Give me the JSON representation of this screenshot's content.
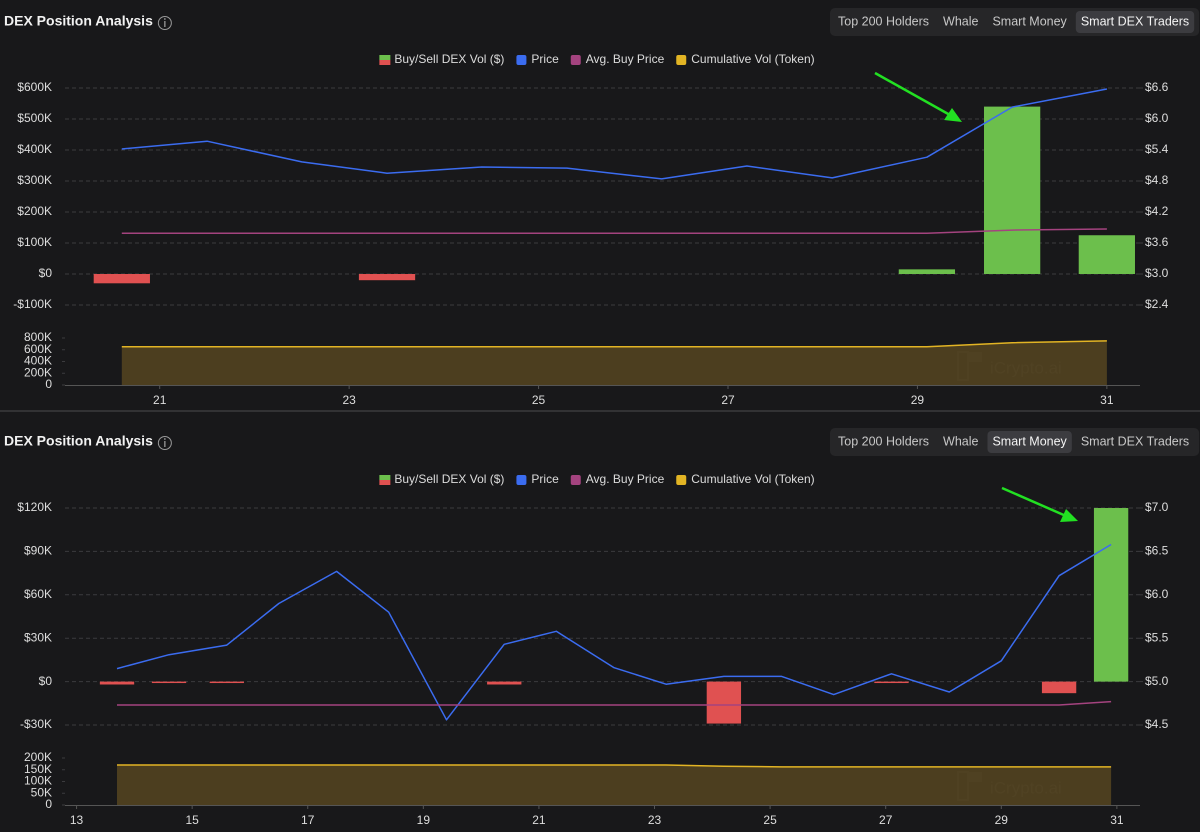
{
  "chart_data": [
    {
      "type": "combo",
      "title": "DEX Position Analysis",
      "tabs": [
        "Top 200 Holders",
        "Whale",
        "Smart Money",
        "Smart DEX Traders"
      ],
      "active_tab": 3,
      "watermark": "iCrypto.ai",
      "x": [
        20.6,
        21.5,
        22.5,
        23.4,
        24.4,
        25.3,
        26.3,
        27.2,
        28.1,
        29.1,
        30.0,
        31.0
      ],
      "xlim": [
        20,
        31.35
      ],
      "xticks": [
        21,
        23,
        25,
        27,
        29,
        31
      ],
      "ylim": [
        -100000,
        600000
      ],
      "yticks": [
        {
          "value": 600000,
          "label": "$600K"
        },
        {
          "value": 500000,
          "label": "$500K"
        },
        {
          "value": 400000,
          "label": "$400K"
        },
        {
          "value": 300000,
          "label": "$300K"
        },
        {
          "value": 200000,
          "label": "$200K"
        },
        {
          "value": 100000,
          "label": "$100K"
        },
        {
          "value": 0,
          "label": "$0"
        },
        {
          "value": -100000,
          "label": "-$100K"
        }
      ],
      "y2lim": [
        2.4,
        6.6
      ],
      "y2ticks": [
        {
          "value": 6.6,
          "label": "$6.6"
        },
        {
          "value": 6.0,
          "label": "$6.0"
        },
        {
          "value": 5.4,
          "label": "$5.4"
        },
        {
          "value": 4.8,
          "label": "$4.8"
        },
        {
          "value": 4.2,
          "label": "$4.2"
        },
        {
          "value": 3.6,
          "label": "$3.6"
        },
        {
          "value": 3.0,
          "label": "$3.0"
        },
        {
          "value": 2.4,
          "label": "$2.4"
        }
      ],
      "y3lim": [
        0,
        800000
      ],
      "y3ticks": [
        {
          "value": 800000,
          "label": "800K"
        },
        {
          "value": 600000,
          "label": "600K"
        },
        {
          "value": 400000,
          "label": "400K"
        },
        {
          "value": 200000,
          "label": "200K"
        },
        0
      ],
      "grid": true,
      "series": [
        {
          "name": "Buy/Sell DEX Vol ($)",
          "kind": "bar",
          "color": "#6cbf4c",
          "negative_color": "#e05151",
          "values": [
            -30000,
            0,
            0,
            -20000,
            0,
            0,
            0,
            0,
            0,
            15000,
            540000,
            125000
          ]
        },
        {
          "name": "Price",
          "kind": "line",
          "axis": "y2",
          "color": "#3b6cf0",
          "values": [
            5.42,
            5.57,
            5.17,
            4.95,
            5.07,
            5.05,
            4.84,
            5.09,
            4.86,
            5.26,
            6.23,
            6.58
          ]
        },
        {
          "name": "Avg. Buy Price",
          "kind": "line",
          "axis": "y2",
          "color": "#a4437f",
          "values": [
            3.79,
            3.79,
            3.79,
            3.79,
            3.79,
            3.79,
            3.79,
            3.79,
            3.79,
            3.79,
            3.85,
            3.87
          ]
        },
        {
          "name": "Cumulative Vol (Token)",
          "kind": "area",
          "axis": "y3",
          "color": "#e2b424",
          "values": [
            650000,
            650000,
            650000,
            650000,
            650000,
            650000,
            650000,
            650000,
            650000,
            650000,
            720000,
            750000
          ]
        }
      ]
    },
    {
      "type": "combo",
      "title": "DEX Position Analysis",
      "tabs": [
        "Top 200 Holders",
        "Whale",
        "Smart Money",
        "Smart DEX Traders"
      ],
      "active_tab": 2,
      "watermark": "iCrypto.ai",
      "x": [
        13.7,
        14.6,
        15.6,
        16.5,
        17.5,
        18.4,
        19.4,
        20.4,
        21.3,
        22.3,
        23.2,
        24.2,
        25.2,
        26.1,
        27.1,
        28.1,
        29.0,
        30.0,
        30.9
      ],
      "xlim": [
        12.8,
        31.4
      ],
      "xticks": [
        13,
        15,
        17,
        19,
        21,
        23,
        25,
        27,
        29,
        31
      ],
      "ylim": [
        -30000,
        120000
      ],
      "yticks": [
        {
          "value": 120000,
          "label": "$120K"
        },
        {
          "value": 90000,
          "label": "$90K"
        },
        {
          "value": 60000,
          "label": "$60K"
        },
        {
          "value": 30000,
          "label": "$30K"
        },
        {
          "value": 0,
          "label": "$0"
        },
        {
          "value": -30000,
          "label": "-$30K"
        }
      ],
      "y2lim": [
        4.5,
        7.0
      ],
      "y2ticks": [
        {
          "value": 7.0,
          "label": "$7.0"
        },
        {
          "value": 6.5,
          "label": "$6.5"
        },
        {
          "value": 6.0,
          "label": "$6.0"
        },
        {
          "value": 5.5,
          "label": "$5.5"
        },
        {
          "value": 5.0,
          "label": "$5.0"
        },
        {
          "value": 4.5,
          "label": "$4.5"
        }
      ],
      "y3lim": [
        0,
        200000
      ],
      "y3ticks": [
        {
          "value": 200000,
          "label": "200K"
        },
        {
          "value": 150000,
          "label": "150K"
        },
        {
          "value": 100000,
          "label": "100K"
        },
        {
          "value": 50000,
          "label": "50K"
        },
        0
      ],
      "grid": true,
      "series": [
        {
          "name": "Buy/Sell DEX Vol ($)",
          "kind": "bar",
          "color": "#6cbf4c",
          "negative_color": "#e05151",
          "values": [
            -2000,
            -1000,
            -1000,
            0,
            0,
            0,
            0,
            -2000,
            0,
            0,
            0,
            -29000,
            0,
            0,
            -1000,
            0,
            0,
            -8000,
            120000
          ]
        },
        {
          "name": "Price",
          "kind": "line",
          "axis": "y2",
          "color": "#3b6cf0",
          "values": [
            5.15,
            5.31,
            5.42,
            5.9,
            6.27,
            5.8,
            4.56,
            5.43,
            5.58,
            5.16,
            4.97,
            5.06,
            5.06,
            4.85,
            5.09,
            4.88,
            5.24,
            6.22,
            6.58
          ]
        },
        {
          "name": "Avg. Buy Price",
          "kind": "line",
          "axis": "y2",
          "color": "#a4437f",
          "values": [
            4.73,
            4.73,
            4.73,
            4.73,
            4.73,
            4.73,
            4.73,
            4.73,
            4.73,
            4.73,
            4.73,
            4.73,
            4.73,
            4.73,
            4.73,
            4.73,
            4.73,
            4.73,
            4.77
          ]
        },
        {
          "name": "Cumulative Vol (Token)",
          "kind": "area",
          "axis": "y3",
          "color": "#e2b424",
          "values": [
            170000,
            170000,
            170000,
            170000,
            170000,
            170000,
            170000,
            170000,
            170000,
            170000,
            170000,
            165000,
            162000,
            162000,
            162000,
            162000,
            162000,
            162000,
            162000
          ]
        }
      ]
    }
  ]
}
